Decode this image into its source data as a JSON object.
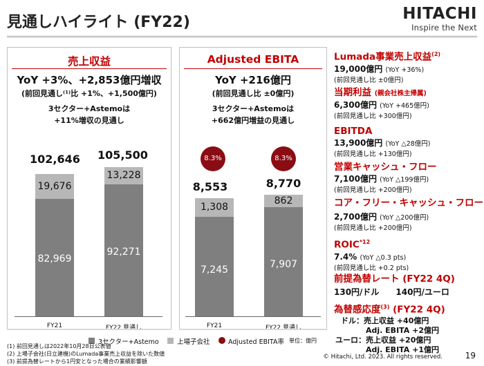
{
  "title": "見通しハイライト (FY22)",
  "logo": {
    "wordmark": "HITACHI",
    "tagline": "Inspire the Next"
  },
  "revenue": {
    "title": "売上収益",
    "yoy": "YoY +3%、+2,853億円増収",
    "vs_prev": "(前回見通し⁽¹⁾比 +1%、+1,500億円)",
    "note_line1": "3セクター+Astemoは",
    "note_line2": "+11%増収の見通し",
    "bars": [
      {
        "label": "FY21",
        "total": "102,646",
        "listed": "19,676",
        "astemo": "82,969"
      },
      {
        "label": "FY22 見通し",
        "total": "105,500",
        "listed": "13,228",
        "astemo": "92,271"
      }
    ]
  },
  "ebita": {
    "title": "Adjusted EBITA",
    "yoy": "YoY +216億円",
    "vs_prev": "(前回見通し比 ±0億円)",
    "note_line1": "3セクター+Astemoは",
    "note_line2": "+662億円増益の見通し",
    "bars": [
      {
        "label": "FY21",
        "total": "8,553",
        "listed": "1,308",
        "astemo": "7,245",
        "rate": "8.3%"
      },
      {
        "label": "FY22 見通し",
        "total": "8,770",
        "listed": "862",
        "astemo": "7,907",
        "rate": "8.3%"
      }
    ]
  },
  "right": {
    "lumada": {
      "head": "Lumada事業売上収益",
      "sup": "(2)",
      "main": "19,000億円",
      "yoy": "(YoY +36%)",
      "sub": "(前回見通し比 ±0億円)"
    },
    "profit": {
      "head": "当期利益",
      "head_small": "(親会社株主帰属)",
      "main": "6,300億円",
      "yoy": "(YoY +465億円)",
      "sub": "(前回見通し比 +300億円)"
    },
    "ebitda": {
      "head": "EBITDA",
      "main": "13,900億円",
      "yoy": "(YoY △28億円)",
      "sub": "(前回見通し比 +130億円)"
    },
    "cf": {
      "head": "営業キャッシュ・フロー",
      "main": "7,100億円",
      "yoy": "(YoY △199億円)",
      "sub": "(前回見通し比 +200億円)"
    },
    "fcf": {
      "head": "コア・フリー・キャッシュ・フロー",
      "main": "2,700億円",
      "yoy": "(YoY △200億円)",
      "sub": "(前回見通し比 +200億円)"
    },
    "roic": {
      "head": "ROIC",
      "sup": "*12",
      "main": "7.4%",
      "yoy": "(YoY △0.3 pts)",
      "sub": "(前回見通し比 +0.2 pts)"
    },
    "fx": {
      "head": "前提為替レート (FY22 4Q)",
      "main": "130円/ドル　　140円/ユーロ"
    },
    "sens": {
      "head": "為替感応度",
      "sup": "(3)",
      "head_tail": " (FY22 4Q)",
      "usd1": "ドル：売上収益 +40億円",
      "usd2": "Adj. EBITA +2億円",
      "eur1": "ユーロ：売上収益 +20億円",
      "eur2": "Adj. EBITA +1億円"
    }
  },
  "legend": {
    "sectors": "3セクター+Astemo",
    "listed": "上場子会社",
    "rate": "Adjusted EBITA率",
    "unit": "単位：億円"
  },
  "footnotes": [
    "(1) 前回見通しは2022年10月28日公表値",
    "(2) 上場子会社(日立建機)のLumada事業売上収益を除いた数値",
    "(3) 前提為替レートから1円安となった場合の業績影響額"
  ],
  "copyright": "© Hitachi, Ltd. 2023. All rights reserved.",
  "page_number": "19",
  "colors": {
    "accent": "#c00000",
    "astemo_bar": "#7f7f7f",
    "listed_bar": "#b7b7b7",
    "rate_circle": "#8b0d14"
  }
}
